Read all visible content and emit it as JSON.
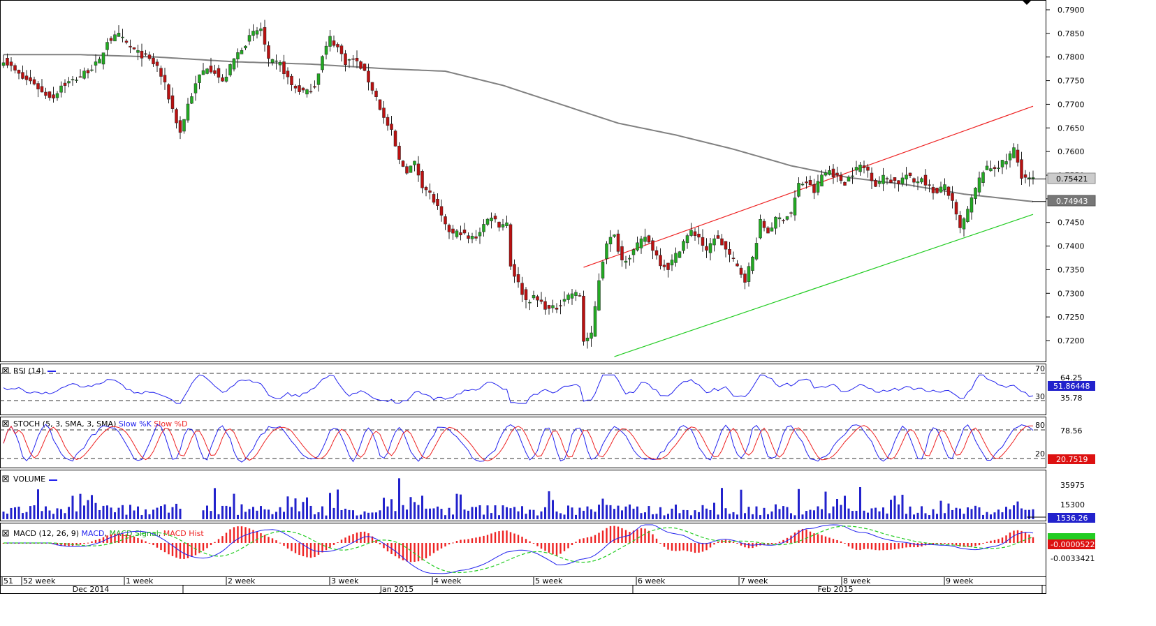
{
  "chart_data": {
    "type": "candlestick",
    "main": {
      "price_ticks": [
        "0.7900",
        "0.7850",
        "0.7800",
        "0.7750",
        "0.7700",
        "0.7650",
        "0.7600",
        "0.7550",
        "0.7500",
        "0.7450",
        "0.7400",
        "0.7350",
        "0.7300",
        "0.7250",
        "0.7200"
      ],
      "ylim": [
        0.7175,
        0.7905
      ],
      "last_price": "0.75421",
      "ma_value": "0.74943",
      "colors": {
        "up": "#22aa22",
        "down": "#bb1111",
        "ma": "#808080",
        "resistance": "#ee2222",
        "support": "#22cc22"
      },
      "anchors": [
        [
          0,
          0.7795
        ],
        [
          3,
          0.777
        ],
        [
          5,
          0.7755
        ],
        [
          8,
          0.7745
        ],
        [
          10,
          0.7725
        ],
        [
          13,
          0.7715
        ],
        [
          15,
          0.774
        ],
        [
          18,
          0.775
        ],
        [
          20,
          0.776
        ],
        [
          22,
          0.7772
        ],
        [
          25,
          0.779
        ],
        [
          27,
          0.7835
        ],
        [
          30,
          0.7845
        ],
        [
          33,
          0.782
        ],
        [
          35,
          0.7808
        ],
        [
          37,
          0.78
        ],
        [
          40,
          0.778
        ],
        [
          42,
          0.774
        ],
        [
          44,
          0.769
        ],
        [
          46,
          0.764
        ],
        [
          48,
          0.77
        ],
        [
          51,
          0.776
        ],
        [
          53,
          0.778
        ],
        [
          55,
          0.777
        ],
        [
          57,
          0.7745
        ],
        [
          60,
          0.7795
        ],
        [
          62,
          0.782
        ],
        [
          65,
          0.785
        ],
        [
          67,
          0.786
        ],
        [
          69,
          0.779
        ],
        [
          72,
          0.7785
        ],
        [
          75,
          0.774
        ],
        [
          77,
          0.773
        ],
        [
          79,
          0.7725
        ],
        [
          81,
          0.774
        ],
        [
          83,
          0.78
        ],
        [
          85,
          0.784
        ],
        [
          87,
          0.782
        ],
        [
          89,
          0.779
        ],
        [
          91,
          0.7795
        ],
        [
          93,
          0.778
        ],
        [
          95,
          0.775
        ],
        [
          97,
          0.7715
        ],
        [
          99,
          0.767
        ],
        [
          101,
          0.764
        ],
        [
          103,
          0.758
        ],
        [
          105,
          0.756
        ],
        [
          107,
          0.7575
        ],
        [
          109,
          0.753
        ],
        [
          111,
          0.751
        ],
        [
          113,
          0.748
        ],
        [
          115,
          0.744
        ],
        [
          117,
          0.7425
        ],
        [
          119,
          0.743
        ],
        [
          121,
          0.7415
        ],
        [
          123,
          0.742
        ],
        [
          125,
          0.7445
        ],
        [
          127,
          0.7465
        ],
        [
          129,
          0.7445
        ],
        [
          131,
          0.745
        ],
        [
          132,
          0.736
        ],
        [
          134,
          0.732
        ],
        [
          136,
          0.7285
        ],
        [
          138,
          0.729
        ],
        [
          140,
          0.728
        ],
        [
          142,
          0.7265
        ],
        [
          144,
          0.727
        ],
        [
          146,
          0.729
        ],
        [
          148,
          0.73
        ],
        [
          150,
          0.7295
        ],
        [
          151,
          0.72
        ],
        [
          153,
          0.721
        ],
        [
          155,
          0.733
        ],
        [
          157,
          0.741
        ],
        [
          159,
          0.742
        ],
        [
          161,
          0.737
        ],
        [
          163,
          0.738
        ],
        [
          165,
          0.74
        ],
        [
          167,
          0.742
        ],
        [
          169,
          0.7395
        ],
        [
          171,
          0.7365
        ],
        [
          173,
          0.7355
        ],
        [
          175,
          0.738
        ],
        [
          177,
          0.741
        ],
        [
          179,
          0.743
        ],
        [
          181,
          0.742
        ],
        [
          183,
          0.7385
        ],
        [
          185,
          0.742
        ],
        [
          187,
          0.7405
        ],
        [
          189,
          0.738
        ],
        [
          191,
          0.7355
        ],
        [
          193,
          0.733
        ],
        [
          195,
          0.7375
        ],
        [
          197,
          0.745
        ],
        [
          199,
          0.743
        ],
        [
          201,
          0.7455
        ],
        [
          203,
          0.746
        ],
        [
          205,
          0.747
        ],
        [
          207,
          0.753
        ],
        [
          209,
          0.7535
        ],
        [
          211,
          0.7515
        ],
        [
          213,
          0.755
        ],
        [
          215,
          0.756
        ],
        [
          217,
          0.7545
        ],
        [
          219,
          0.7535
        ],
        [
          221,
          0.7555
        ],
        [
          223,
          0.757
        ],
        [
          225,
          0.756
        ],
        [
          227,
          0.753
        ],
        [
          229,
          0.7545
        ],
        [
          231,
          0.754
        ],
        [
          233,
          0.7535
        ],
        [
          235,
          0.755
        ],
        [
          237,
          0.7535
        ],
        [
          239,
          0.7545
        ],
        [
          241,
          0.7525
        ],
        [
          243,
          0.751
        ],
        [
          245,
          0.753
        ],
        [
          247,
          0.749
        ],
        [
          249,
          0.7435
        ],
        [
          251,
          0.7475
        ],
        [
          253,
          0.752
        ],
        [
          255,
          0.756
        ],
        [
          257,
          0.7565
        ],
        [
          259,
          0.757
        ],
        [
          261,
          0.758
        ],
        [
          263,
          0.7605
        ],
        [
          265,
          0.755
        ],
        [
          267,
          0.754
        ],
        [
          268,
          0.7542
        ]
      ],
      "ma_anchors": [
        [
          0,
          0.7805
        ],
        [
          20,
          0.7805
        ],
        [
          40,
          0.78
        ],
        [
          60,
          0.779
        ],
        [
          80,
          0.7785
        ],
        [
          100,
          0.7775
        ],
        [
          115,
          0.777
        ],
        [
          130,
          0.774
        ],
        [
          145,
          0.77
        ],
        [
          160,
          0.766
        ],
        [
          175,
          0.7635
        ],
        [
          190,
          0.7605
        ],
        [
          205,
          0.757
        ],
        [
          220,
          0.7545
        ],
        [
          235,
          0.753
        ],
        [
          250,
          0.751
        ],
        [
          268,
          0.7494
        ]
      ],
      "resistance_line": {
        "start": [
          151,
          0.7355
        ],
        "end": [
          268,
          0.7696
        ]
      },
      "support_line": {
        "start": [
          159,
          0.7166
        ],
        "end": [
          268,
          0.7467
        ]
      }
    },
    "rsi": {
      "label": "RSI (14)",
      "levels": [
        "70",
        "30"
      ],
      "ticks": [
        "64.25",
        "35.78"
      ],
      "value": "51.86448",
      "color": "#2222ee"
    },
    "stoch": {
      "label": "STOCH (5, 3, SMA, 3, SMA)",
      "k_label": "Slow %K",
      "d_label": "Slow %D",
      "levels": [
        "80",
        "20"
      ],
      "ticks": [
        "78.56"
      ],
      "value": "20.7519",
      "colors": {
        "k": "#2222ee",
        "d": "#ee2222"
      }
    },
    "volume": {
      "label": "VOLUME",
      "ticks": [
        "35975",
        "15300"
      ],
      "value": "1536.26",
      "color": "#2222cc",
      "max": 45000
    },
    "macd": {
      "label": "MACD (12, 26, 9)",
      "macd_label": "MACD",
      "signal_label": "MACD Signal",
      "hist_label": "MACD Hist",
      "ticks": [
        "-0.0033421"
      ],
      "value": "-0.0000522",
      "colors": {
        "macd": "#2222ee",
        "signal": "#22cc22",
        "hist": "#ee2222"
      }
    },
    "x_axis": {
      "week_labels": [
        "51",
        "52 week",
        "1 week",
        "2 week",
        "3 week",
        "4 week",
        "5 week",
        "6 week",
        "7 week",
        "8 week",
        "9 week"
      ],
      "month_labels": [
        "Dec 2014",
        "Jan 2015",
        "Feb 2015"
      ]
    }
  }
}
